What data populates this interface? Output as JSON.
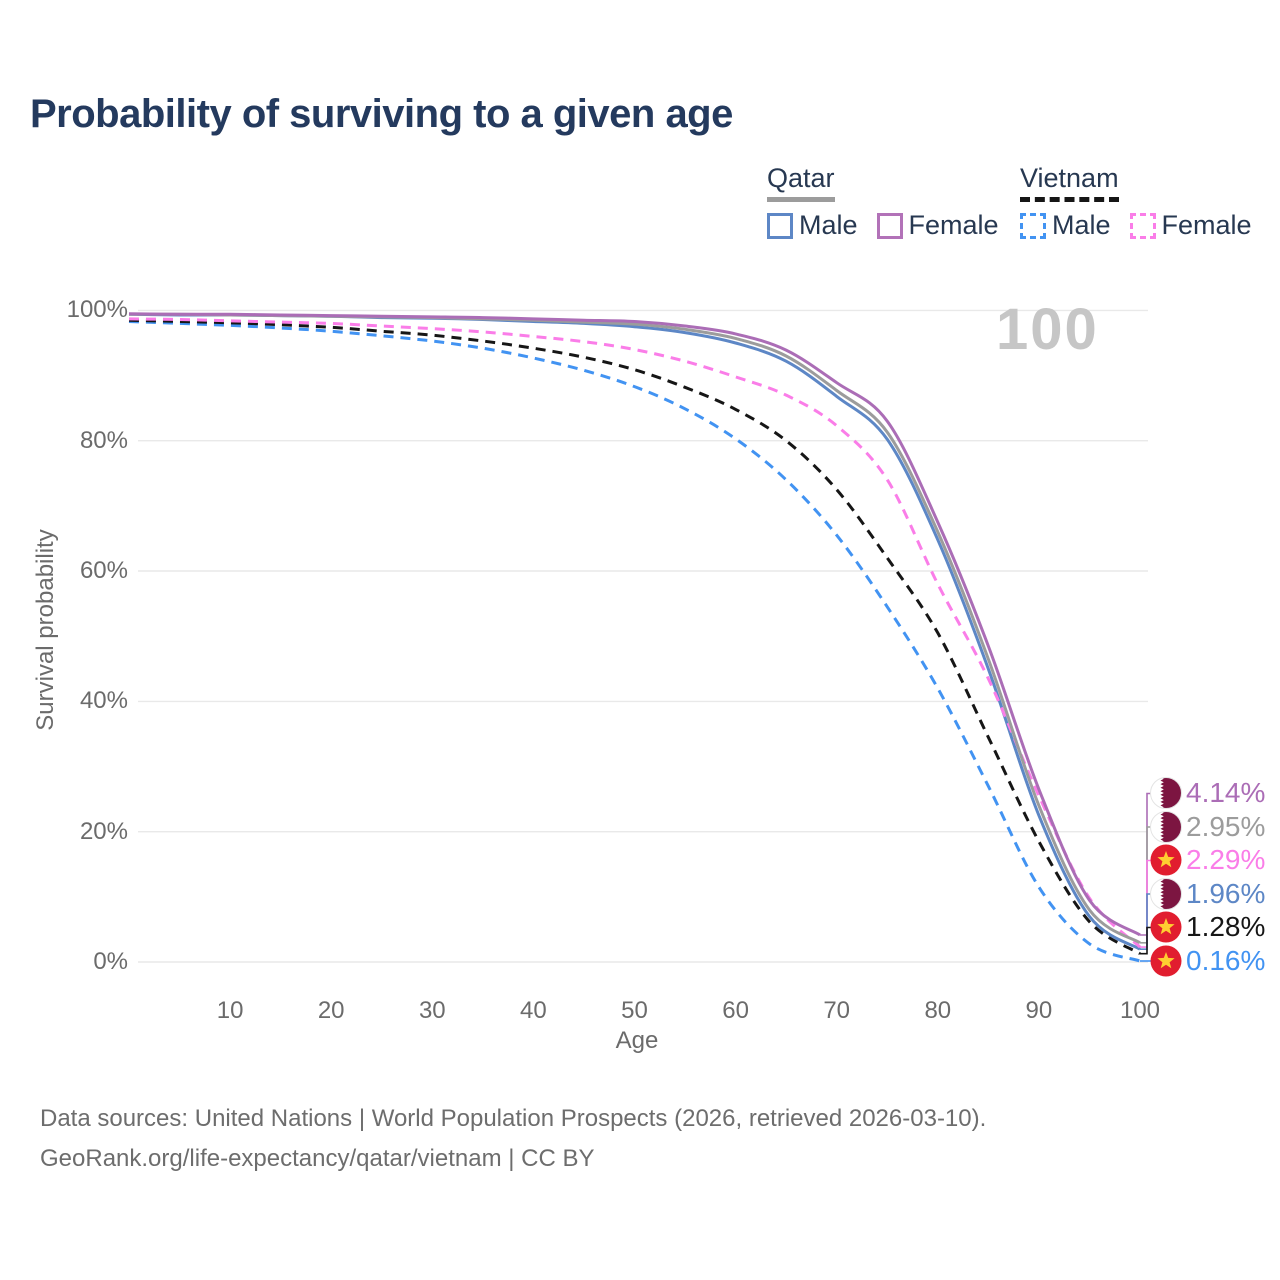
{
  "title": "Probability of surviving to a given age",
  "watermark": "100",
  "legend": {
    "groups": [
      {
        "label": "Qatar",
        "line_style": "solid",
        "line_color": "#9c9c9c",
        "items": [
          {
            "label": "Male",
            "color": "#5d87c6",
            "style": "solid"
          },
          {
            "label": "Female",
            "color": "#b272b8",
            "style": "solid"
          }
        ]
      },
      {
        "label": "Vietnam",
        "line_style": "dashed",
        "line_color": "#161616",
        "items": [
          {
            "label": "Male",
            "color": "#4293f2",
            "style": "dashed"
          },
          {
            "label": "Female",
            "color": "#fa7de8",
            "style": "dashed"
          }
        ]
      }
    ]
  },
  "y_axis": {
    "label": "Survival probability",
    "ticks": [
      {
        "label": "100%",
        "value": 100
      },
      {
        "label": "80%",
        "value": 80
      },
      {
        "label": "60%",
        "value": 60
      },
      {
        "label": "40%",
        "value": 40
      },
      {
        "label": "20%",
        "value": 20
      },
      {
        "label": "0%",
        "value": 0
      }
    ]
  },
  "x_axis": {
    "label": "Age",
    "ticks": [
      10,
      20,
      30,
      40,
      50,
      60,
      70,
      80,
      90,
      100
    ]
  },
  "chart_data": {
    "type": "line",
    "title": "Probability of surviving to a given age",
    "xlabel": "Age",
    "ylabel": "Survival probability",
    "xlim": [
      0,
      100
    ],
    "ylim": [
      0,
      100
    ],
    "grid": true,
    "legend_position": "top-right",
    "x": [
      0,
      5,
      10,
      15,
      20,
      25,
      30,
      35,
      40,
      45,
      50,
      55,
      60,
      65,
      70,
      75,
      80,
      85,
      90,
      95,
      100
    ],
    "series": [
      {
        "name": "Qatar Female",
        "country": "Qatar",
        "sex": "Female",
        "color": "#ab6db6",
        "dash": "solid",
        "end_label": "4.14%",
        "end_value": 4.14,
        "flag": "qatar",
        "values": [
          99.5,
          99.4,
          99.4,
          99.3,
          99.2,
          99.1,
          99.0,
          98.9,
          98.7,
          98.5,
          98.3,
          97.6,
          96.4,
          93.9,
          88.9,
          83.0,
          67.5,
          48.5,
          26.5,
          9.5,
          4.14
        ]
      },
      {
        "name": "Qatar Both sexes",
        "country": "Qatar",
        "sex": "Both",
        "color": "#9c9c9c",
        "dash": "solid",
        "end_label": "2.95%",
        "end_value": 2.95,
        "flag": "qatar",
        "values": [
          99.4,
          99.4,
          99.3,
          99.2,
          99.1,
          99.0,
          98.9,
          98.7,
          98.5,
          98.2,
          97.9,
          97.1,
          95.7,
          93.0,
          87.7,
          81.3,
          66.0,
          46.5,
          24.0,
          8.0,
          2.95
        ]
      },
      {
        "name": "Vietnam Female",
        "country": "Vietnam",
        "sex": "Female",
        "color": "#fa7de8",
        "dash": "dashed",
        "end_label": "2.29%",
        "end_value": 2.29,
        "flag": "vietnam",
        "values": [
          98.7,
          98.6,
          98.4,
          98.2,
          98.0,
          97.6,
          97.2,
          96.7,
          96.0,
          95.2,
          94.0,
          92.2,
          89.8,
          87.0,
          82.3,
          74.0,
          58.0,
          43.5,
          25.5,
          9.8,
          2.29
        ]
      },
      {
        "name": "Qatar Male",
        "country": "Qatar",
        "sex": "Male",
        "color": "#5d87c6",
        "dash": "solid",
        "end_label": "1.96%",
        "end_value": 1.96,
        "flag": "qatar",
        "values": [
          99.4,
          99.3,
          99.3,
          99.2,
          99.1,
          98.9,
          98.8,
          98.6,
          98.3,
          98.0,
          97.5,
          96.6,
          95.0,
          92.2,
          86.8,
          80.2,
          64.8,
          45.0,
          22.5,
          7.0,
          1.96
        ]
      },
      {
        "name": "Vietnam Both sexes",
        "country": "Vietnam",
        "sex": "Both",
        "color": "#161616",
        "dash": "dashed",
        "end_label": "1.28%",
        "end_value": 1.28,
        "flag": "vietnam",
        "values": [
          98.5,
          98.3,
          98.1,
          97.8,
          97.4,
          96.8,
          96.2,
          95.3,
          94.2,
          92.8,
          90.9,
          88.2,
          84.8,
          80.0,
          72.5,
          62.0,
          50.5,
          34.5,
          18.5,
          6.2,
          1.28
        ]
      },
      {
        "name": "Vietnam Male",
        "country": "Vietnam",
        "sex": "Male",
        "color": "#4293f2",
        "dash": "dashed",
        "end_label": "0.16%",
        "end_value": 0.16,
        "flag": "vietnam",
        "values": [
          98.3,
          98.0,
          97.7,
          97.3,
          96.8,
          96.1,
          95.3,
          94.2,
          92.7,
          90.8,
          88.3,
          84.9,
          80.3,
          74.0,
          65.5,
          54.5,
          42.0,
          27.0,
          11.5,
          2.8,
          0.16
        ]
      }
    ],
    "flag_colors": {
      "qatar_maroon": "#7c1541",
      "qatar_white": "#ffffff",
      "vietnam_red": "#e11d2f",
      "vietnam_star": "#ffce31"
    },
    "gridline_color": "#e9e9e9",
    "watermark_color": "#c6c6c6"
  },
  "footer": {
    "line1": "Data sources: United Nations | World Population Prospects (2026, retrieved 2026-03-10).",
    "line2": "GeoRank.org/life-expectancy/qatar/vietnam | CC BY"
  }
}
